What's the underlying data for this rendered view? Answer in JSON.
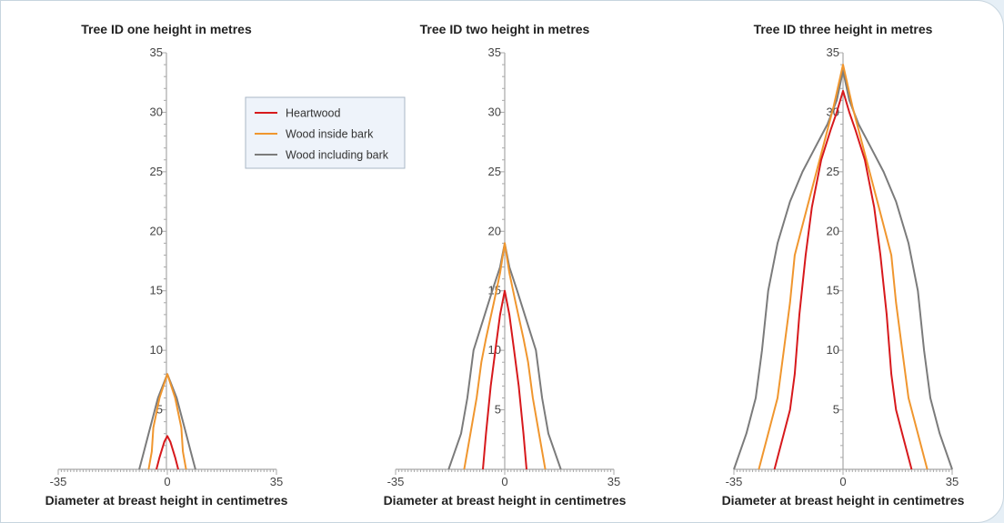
{
  "colors": {
    "heartwood": "#d7191c",
    "inside_bark": "#f0962e",
    "including_bark": "#7b7b7b",
    "axis": "#a8a8a8",
    "legend_bg": "#eef3fa",
    "legend_border": "#a9b7c6"
  },
  "legend": {
    "items": [
      {
        "label": "Heartwood",
        "series": "heartwood"
      },
      {
        "label": "Wood inside bark",
        "series": "inside_bark"
      },
      {
        "label": "Wood including bark",
        "series": "including_bark"
      }
    ]
  },
  "chart_data": [
    {
      "type": "line",
      "title": "Tree ID one height in metres",
      "xlabel": "Diameter at breast height in centimetres",
      "xlim": [
        -35,
        35
      ],
      "ylim": [
        0,
        35
      ],
      "x_ticks": [
        -35,
        0,
        35
      ],
      "y_ticks": [
        5,
        10,
        15,
        20,
        25,
        30,
        35
      ],
      "series": [
        {
          "name": "Heartwood",
          "key": "heartwood",
          "points": [
            [
              -3.5,
              0
            ],
            [
              -2.5,
              1
            ],
            [
              -1,
              2.3
            ],
            [
              0,
              2.8
            ],
            [
              1,
              2.3
            ],
            [
              2.5,
              1
            ],
            [
              3.5,
              0
            ]
          ]
        },
        {
          "name": "Wood inside bark",
          "key": "inside_bark",
          "points": [
            [
              -6,
              0
            ],
            [
              -5,
              1.5
            ],
            [
              -4.5,
              3.5
            ],
            [
              -2.5,
              6
            ],
            [
              0,
              8
            ],
            [
              2.5,
              6
            ],
            [
              4.5,
              3.5
            ],
            [
              5,
              1.5
            ],
            [
              6,
              0
            ]
          ]
        },
        {
          "name": "Wood including bark",
          "key": "including_bark",
          "points": [
            [
              -9,
              0
            ],
            [
              -7.5,
              1.5
            ],
            [
              -5.5,
              3.5
            ],
            [
              -3,
              6
            ],
            [
              0,
              8
            ],
            [
              3,
              6
            ],
            [
              5.5,
              3.5
            ],
            [
              7.5,
              1.5
            ],
            [
              9,
              0
            ]
          ]
        }
      ]
    },
    {
      "type": "line",
      "title": "Tree ID two height in metres",
      "xlabel": "Diameter at breast height in centimetres",
      "xlim": [
        -35,
        35
      ],
      "ylim": [
        0,
        35
      ],
      "x_ticks": [
        -35,
        0,
        35
      ],
      "y_ticks": [
        5,
        10,
        15,
        20,
        25,
        30,
        35
      ],
      "series": [
        {
          "name": "Heartwood",
          "key": "heartwood",
          "points": [
            [
              -7,
              0
            ],
            [
              -6,
              3
            ],
            [
              -4.5,
              7
            ],
            [
              -3,
              10
            ],
            [
              -1.5,
              13
            ],
            [
              0,
              15
            ],
            [
              1.5,
              13
            ],
            [
              3,
              10
            ],
            [
              4.5,
              7
            ],
            [
              6,
              3
            ],
            [
              7,
              0
            ]
          ]
        },
        {
          "name": "Wood inside bark",
          "key": "inside_bark",
          "points": [
            [
              -13,
              0
            ],
            [
              -11,
              3
            ],
            [
              -9,
              6
            ],
            [
              -7.5,
              9
            ],
            [
              -6,
              11
            ],
            [
              -3.5,
              14
            ],
            [
              -1.5,
              16.5
            ],
            [
              0,
              19
            ],
            [
              1.5,
              16.5
            ],
            [
              3.5,
              14
            ],
            [
              6,
              11
            ],
            [
              7.5,
              9
            ],
            [
              9,
              6
            ],
            [
              11,
              3
            ],
            [
              13,
              0
            ]
          ]
        },
        {
          "name": "Wood including bark",
          "key": "including_bark",
          "points": [
            [
              -18,
              0
            ],
            [
              -14,
              3
            ],
            [
              -12,
              6
            ],
            [
              -10,
              10
            ],
            [
              -7,
              12.5
            ],
            [
              -4,
              15
            ],
            [
              -1.5,
              17
            ],
            [
              0,
              19
            ],
            [
              1.5,
              17
            ],
            [
              4,
              15
            ],
            [
              7,
              12.5
            ],
            [
              10,
              10
            ],
            [
              12,
              6
            ],
            [
              14,
              3
            ],
            [
              18,
              0
            ]
          ]
        }
      ]
    },
    {
      "type": "line",
      "title": "Tree ID three height in metres",
      "xlabel": "Diameter at breast height in centimetres",
      "xlim": [
        -35,
        35
      ],
      "ylim": [
        0,
        35
      ],
      "x_ticks": [
        -35,
        0,
        35
      ],
      "y_ticks": [
        5,
        10,
        15,
        20,
        25,
        30,
        35
      ],
      "series": [
        {
          "name": "Heartwood",
          "key": "heartwood",
          "points": [
            [
              -22,
              0
            ],
            [
              -19,
              3
            ],
            [
              -17,
              5
            ],
            [
              -15.5,
              8
            ],
            [
              -14,
              13
            ],
            [
              -12,
              18
            ],
            [
              -10,
              22
            ],
            [
              -7,
              26
            ],
            [
              -4,
              28.5
            ],
            [
              -2,
              30
            ],
            [
              0,
              31.8
            ],
            [
              2,
              30
            ],
            [
              4,
              28.5
            ],
            [
              7,
              26
            ],
            [
              10,
              22
            ],
            [
              12,
              18
            ],
            [
              14,
              13
            ],
            [
              15.5,
              8
            ],
            [
              17,
              5
            ],
            [
              19,
              3
            ],
            [
              22,
              0
            ]
          ]
        },
        {
          "name": "Wood inside bark",
          "key": "inside_bark",
          "points": [
            [
              -27,
              0
            ],
            [
              -24,
              3
            ],
            [
              -21,
              6
            ],
            [
              -19,
              10
            ],
            [
              -17,
              14
            ],
            [
              -15.5,
              18
            ],
            [
              -12.5,
              21
            ],
            [
              -9.5,
              24
            ],
            [
              -6,
              27.5
            ],
            [
              -3,
              30.5
            ],
            [
              0,
              34
            ],
            [
              3,
              30.5
            ],
            [
              6,
              27.5
            ],
            [
              9.5,
              24
            ],
            [
              12.5,
              21
            ],
            [
              15.5,
              18
            ],
            [
              17,
              14
            ],
            [
              19,
              10
            ],
            [
              21,
              6
            ],
            [
              24,
              3
            ],
            [
              27,
              0
            ]
          ]
        },
        {
          "name": "Wood including bark",
          "key": "including_bark",
          "points": [
            [
              -35,
              0
            ],
            [
              -31,
              3
            ],
            [
              -28,
              6
            ],
            [
              -26,
              10
            ],
            [
              -24,
              15
            ],
            [
              -21,
              19
            ],
            [
              -17,
              22.5
            ],
            [
              -13,
              25
            ],
            [
              -9,
              27
            ],
            [
              -5,
              29
            ],
            [
              -2,
              31
            ],
            [
              0,
              33.5
            ],
            [
              2,
              31
            ],
            [
              5,
              29
            ],
            [
              9,
              27
            ],
            [
              13,
              25
            ],
            [
              17,
              22.5
            ],
            [
              21,
              19
            ],
            [
              24,
              15
            ],
            [
              26,
              10
            ],
            [
              28,
              6
            ],
            [
              31,
              3
            ],
            [
              35,
              0
            ]
          ]
        }
      ]
    }
  ]
}
